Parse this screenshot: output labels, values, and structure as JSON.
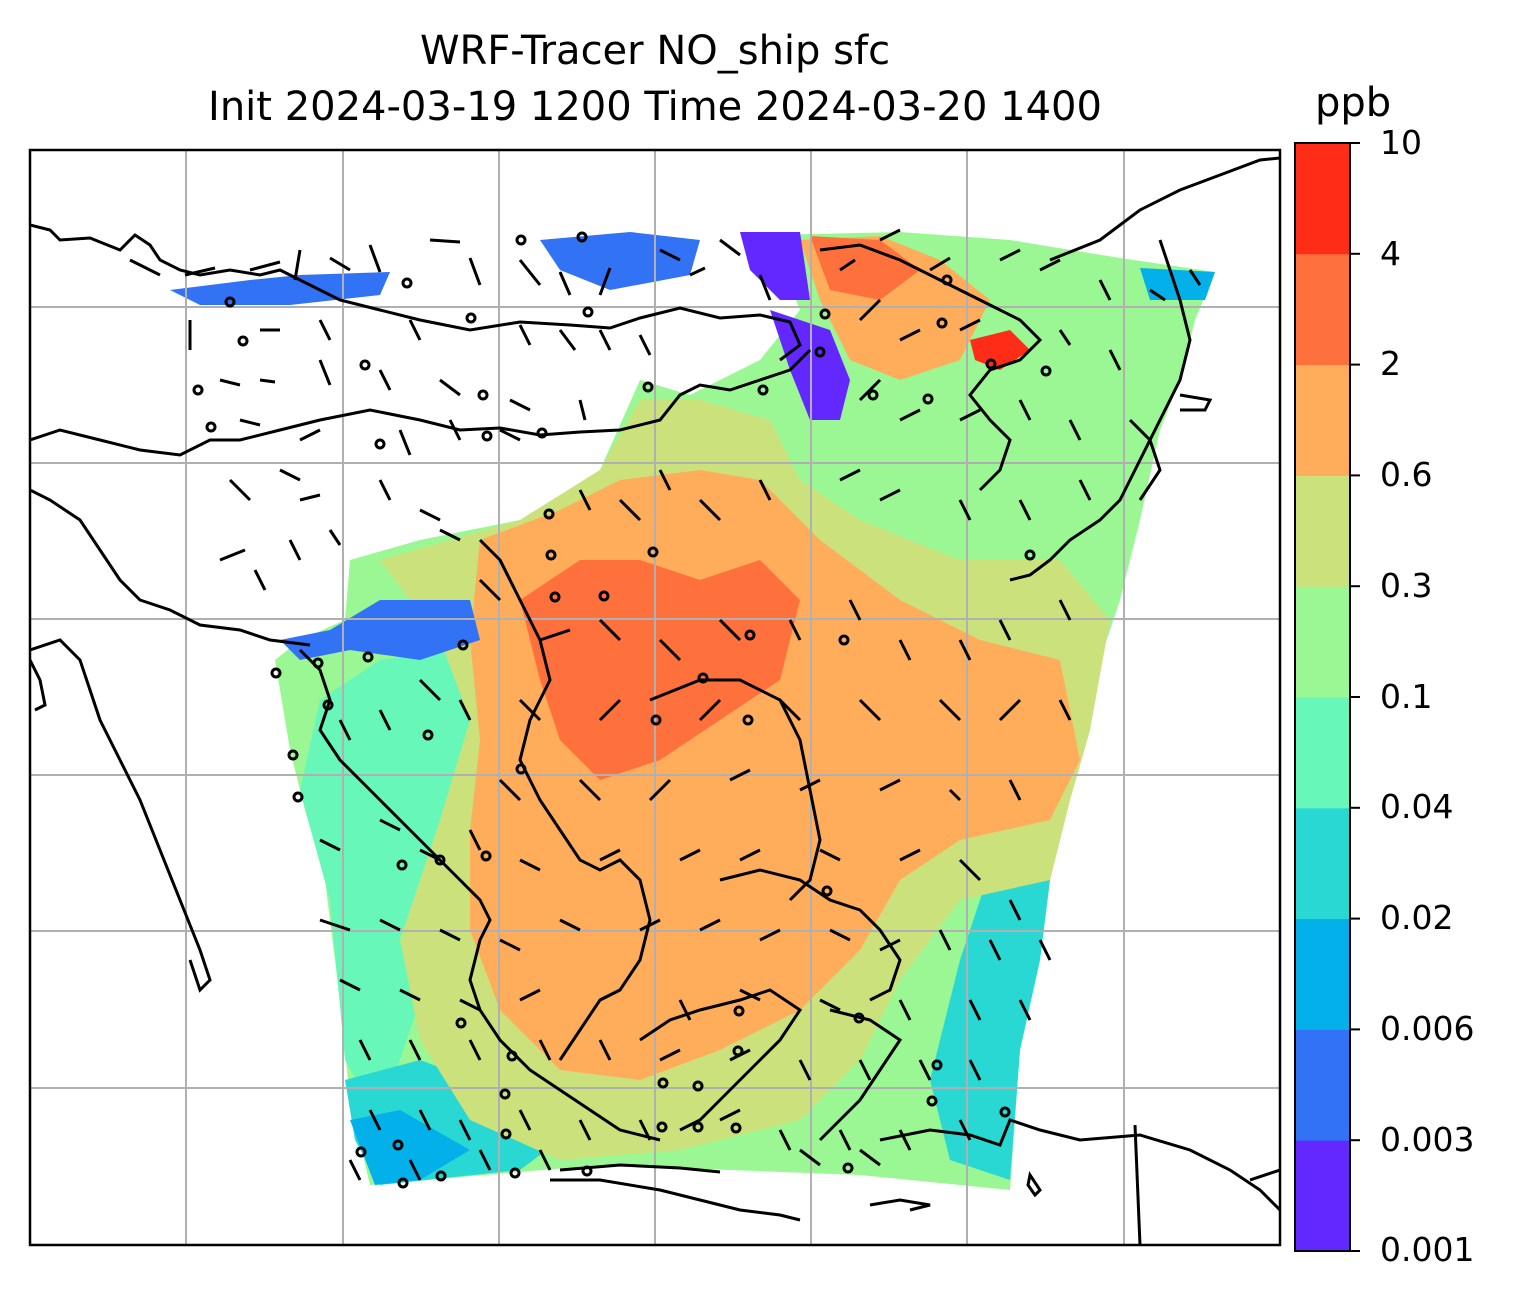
{
  "title": {
    "line1": "WRF-Tracer NO_ship sfc",
    "line2": "Init 2024-03-19 1200 Time 2024-03-20 1400"
  },
  "colorbar": {
    "unit": "ppb",
    "ticks": [
      "0.001",
      "0.003",
      "0.006",
      "0.02",
      "0.04",
      "0.1",
      "0.3",
      "0.6",
      "2",
      "4",
      "10"
    ],
    "colors": [
      "#6328ff",
      "#3272f4",
      "#04b0ea",
      "#2ad8d3",
      "#66f7b9",
      "#9af794",
      "#cbe27c",
      "#ffad5a",
      "#ff713c",
      "#ff2c17"
    ]
  },
  "map": {
    "gridlines": "on",
    "coastlines": "on",
    "wind_barbs": "on",
    "field": "NO_ship surface concentration"
  }
}
